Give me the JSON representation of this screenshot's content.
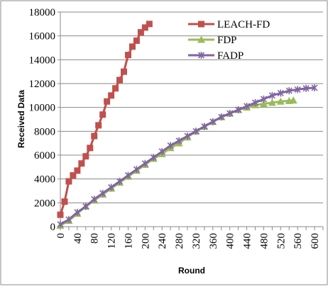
{
  "chart_data": {
    "type": "line",
    "xlabel": "Round",
    "ylabel": "Received Data",
    "xlim": [
      0,
      620
    ],
    "ylim": [
      0,
      18000
    ],
    "x_ticks": [
      "0",
      "40",
      "80",
      "120",
      "160",
      "200",
      "240",
      "280",
      "320",
      "360",
      "400",
      "440",
      "480",
      "520",
      "560",
      "600"
    ],
    "y_ticks": [
      "0",
      "2000",
      "4000",
      "6000",
      "8000",
      "10000",
      "12000",
      "14000",
      "16000",
      "18000"
    ],
    "legend_position": "top-right",
    "grid": "horizontal",
    "series": [
      {
        "name": "LEACH-FD",
        "color": "#c0504d",
        "marker": "square",
        "x": [
          0,
          10,
          20,
          30,
          40,
          50,
          60,
          70,
          80,
          90,
          100,
          110,
          120,
          130,
          140,
          150,
          160,
          170,
          180,
          190,
          200,
          210
        ],
        "y": [
          1000,
          2100,
          3800,
          4300,
          4700,
          5300,
          5900,
          6600,
          7600,
          8500,
          9400,
          10500,
          11000,
          11600,
          12300,
          13000,
          14400,
          15100,
          15600,
          16300,
          16700,
          17000
        ]
      },
      {
        "name": "FDP",
        "color": "#9bbb59",
        "marker": "triangle",
        "x": [
          0,
          20,
          40,
          60,
          80,
          100,
          120,
          140,
          160,
          180,
          200,
          220,
          240,
          260,
          280,
          300,
          320,
          340,
          360,
          380,
          400,
          420,
          440,
          460,
          480,
          500,
          520,
          540,
          550
        ],
        "y": [
          100,
          500,
          1100,
          1700,
          2200,
          2700,
          3200,
          3700,
          4200,
          4700,
          5200,
          5700,
          6100,
          6600,
          7000,
          7500,
          8000,
          8400,
          8800,
          9200,
          9500,
          9800,
          10000,
          10200,
          10300,
          10400,
          10500,
          10550,
          10600
        ]
      },
      {
        "name": "FADP",
        "color": "#8064a2",
        "marker": "star",
        "x": [
          0,
          20,
          40,
          60,
          80,
          100,
          120,
          140,
          160,
          180,
          200,
          220,
          240,
          260,
          280,
          300,
          320,
          340,
          360,
          380,
          400,
          420,
          440,
          460,
          480,
          500,
          520,
          540,
          560,
          580,
          600
        ],
        "y": [
          200,
          600,
          1200,
          1700,
          2300,
          2800,
          3300,
          3800,
          4300,
          4800,
          5300,
          5800,
          6300,
          6800,
          7200,
          7600,
          8000,
          8400,
          8800,
          9200,
          9500,
          9800,
          10100,
          10400,
          10700,
          11000,
          11200,
          11400,
          11500,
          11600,
          11650
        ]
      }
    ]
  }
}
